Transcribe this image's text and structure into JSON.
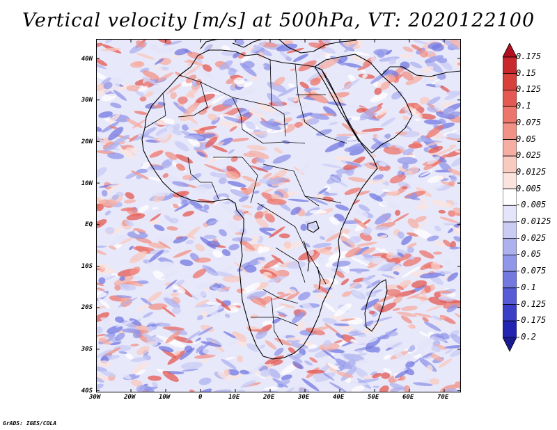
{
  "title": "Vertical velocity [m/s] at 500hPa, VT: 2020122100",
  "footer": "GrADS: IGES/COLA",
  "lat_labels": [
    "40N",
    "30N",
    "20N",
    "10N",
    "EQ",
    "10S",
    "20S",
    "30S",
    "40S"
  ],
  "lon_labels": [
    "30W",
    "20W",
    "10W",
    "0",
    "10E",
    "20E",
    "30E",
    "40E",
    "50E",
    "60E",
    "70E"
  ],
  "colorbar": {
    "labels": [
      "0.175",
      "0.15",
      "0.125",
      "0.1",
      "0.075",
      "0.05",
      "0.025",
      "0.0125",
      "0.005",
      "-0.005",
      "-0.0125",
      "-0.025",
      "-0.05",
      "-0.075",
      "-0.1",
      "-0.125",
      "-0.175",
      "-0.2"
    ],
    "colors": [
      "#b01020",
      "#c8282c",
      "#d8403c",
      "#e45a52",
      "#ec766c",
      "#f29286",
      "#f6aea2",
      "#f9cabf",
      "#fce4de",
      "#ffffff",
      "#e4e4fa",
      "#caccf4",
      "#adb2ee",
      "#9096e8",
      "#7479e0",
      "#575cd6",
      "#3b3fc8",
      "#2324b2",
      "#1a1a90"
    ]
  },
  "colors": {
    "land_outline": "#000000",
    "frame": "#000000"
  }
}
